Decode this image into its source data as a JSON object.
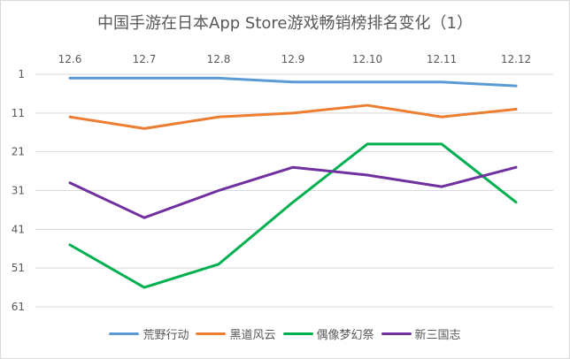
{
  "chart_data": {
    "type": "line",
    "title": "中国手游在日本App Store游戏畅销榜排名变化（1）",
    "categories": [
      "12.6",
      "12.7",
      "12.8",
      "12.9",
      "12.10",
      "12.11",
      "12.12"
    ],
    "y_ticks": [
      "1",
      "11",
      "21",
      "31",
      "41",
      "51",
      "61"
    ],
    "ylim": [
      1,
      61
    ],
    "y_reversed": true,
    "grid": true,
    "legend_position": "bottom",
    "series": [
      {
        "name": "荒野行动",
        "color": "#5b9bd5",
        "values": [
          2,
          2,
          2,
          3,
          3,
          3,
          4
        ]
      },
      {
        "name": "黑道风云",
        "color": "#ed7d31",
        "values": [
          12,
          15,
          12,
          11,
          9,
          12,
          10
        ]
      },
      {
        "name": "偶像梦幻祭",
        "color": "#00b050",
        "values": [
          45,
          56,
          50,
          34,
          19,
          19,
          34
        ]
      },
      {
        "name": "新三国志",
        "color": "#7030a0",
        "values": [
          29,
          38,
          31,
          25,
          27,
          30,
          25
        ]
      }
    ]
  }
}
